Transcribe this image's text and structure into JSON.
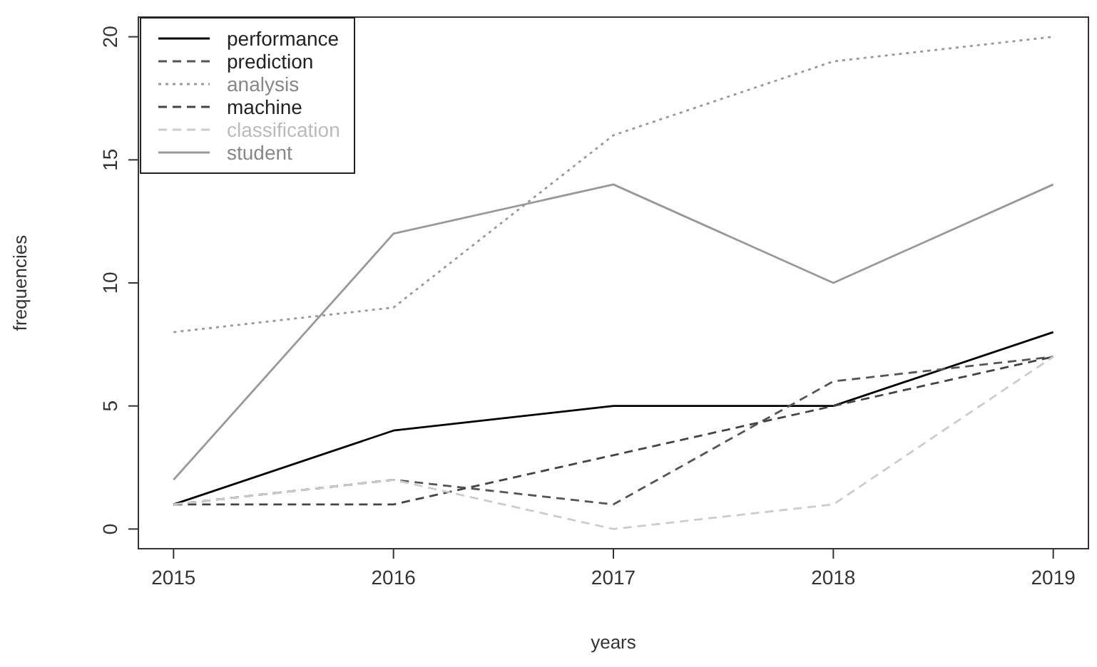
{
  "chart_data": {
    "type": "line",
    "xlabel": "years",
    "ylabel": "frequencies",
    "x": [
      2015,
      2016,
      2017,
      2018,
      2019
    ],
    "xlim": [
      2014.84,
      2019.16
    ],
    "xticks": [
      2015,
      2016,
      2017,
      2018,
      2019
    ],
    "ylim": [
      -0.8,
      20.8
    ],
    "yticks": [
      0,
      5,
      10,
      15,
      20
    ],
    "grid": false,
    "legend": "top left",
    "marker": "none",
    "series": [
      {
        "name": "performance",
        "color": "#000000",
        "line_style": "solid",
        "values": [
          1,
          4,
          5,
          5,
          8
        ]
      },
      {
        "name": "prediction",
        "color": "#555555",
        "line_style": "dashed",
        "values": [
          1,
          2,
          1,
          6,
          7
        ]
      },
      {
        "name": "analysis",
        "color": "#999999",
        "line_style": "dotted",
        "values": [
          8,
          9,
          16,
          19,
          20
        ]
      },
      {
        "name": "machine",
        "color": "#444444",
        "line_style": "dashed",
        "values": [
          1,
          1,
          3,
          5,
          7
        ]
      },
      {
        "name": "classification",
        "color": "#cccccc",
        "line_style": "dashed",
        "values": [
          1,
          2,
          0,
          1,
          7
        ]
      },
      {
        "name": "student",
        "color": "#999999",
        "line_style": "solid",
        "values": [
          2,
          12,
          14,
          10,
          14
        ]
      }
    ]
  }
}
